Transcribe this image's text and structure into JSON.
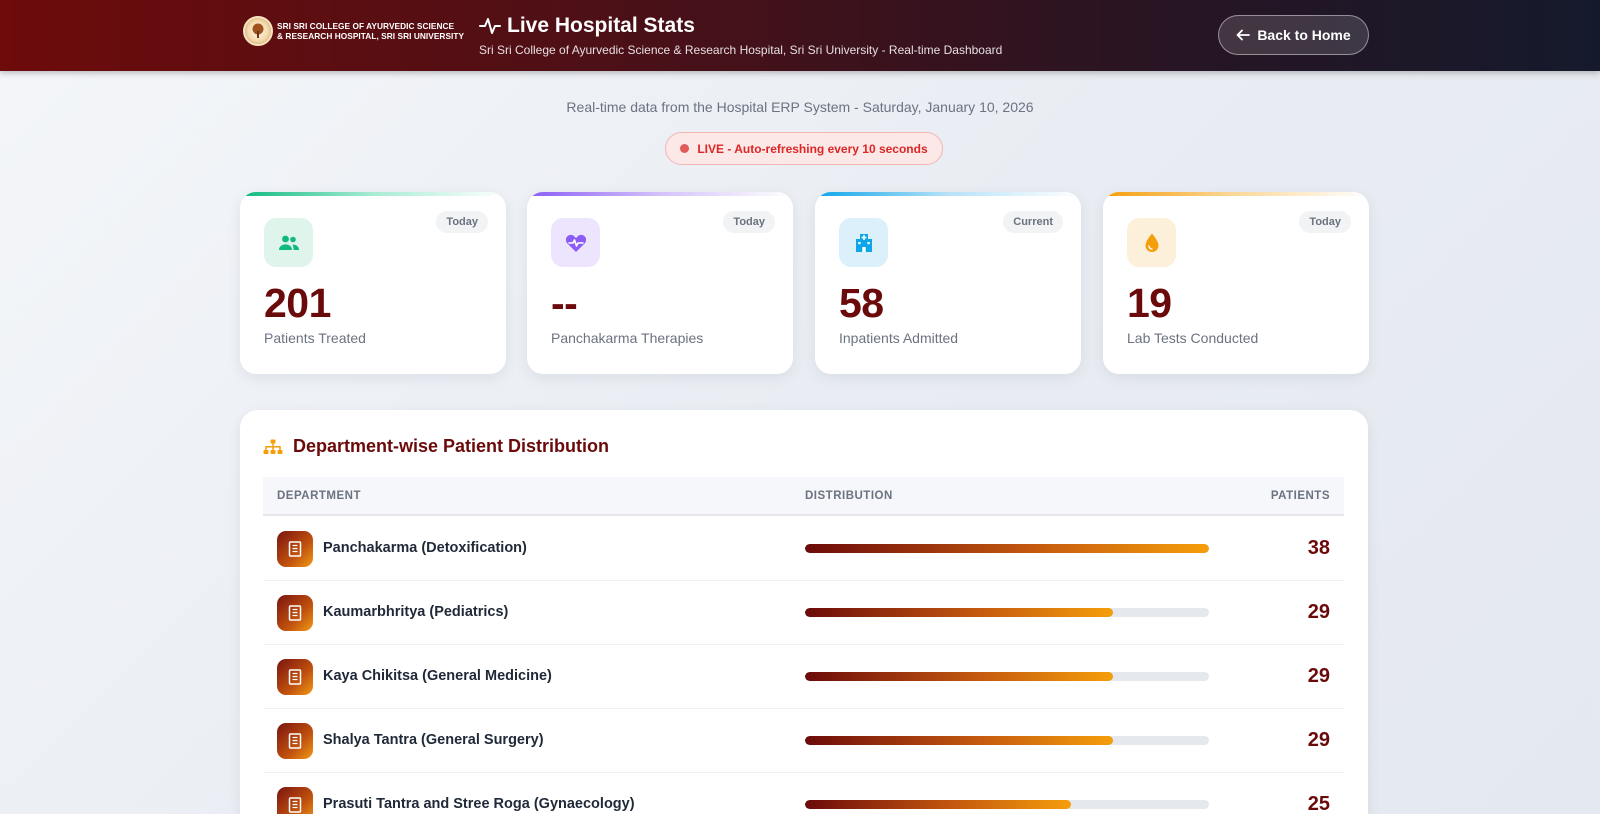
{
  "header": {
    "logo_line1": "SRI SRI COLLEGE OF AYURVEDIC SCIENCE",
    "logo_line2": "& RESEARCH HOSPITAL, SRI SRI UNIVERSITY",
    "title": "Live Hospital Stats",
    "subtitle": "Sri Sri College of Ayurvedic Science & Research Hospital, Sri Sri University - Real-time Dashboard",
    "back_label": "Back to Home"
  },
  "intro": {
    "realtime_text": "Real-time data from the Hospital ERP System - Saturday, January 10, 2026",
    "live_text": "LIVE - Auto-refreshing every 10 seconds"
  },
  "stats": [
    {
      "badge": "Today",
      "value": "201",
      "label": "Patients Treated",
      "icon": "users-icon",
      "accent": "#10b981",
      "icon_bg": "#dff5ec"
    },
    {
      "badge": "Today",
      "value": "--",
      "label": "Panchakarma Therapies",
      "icon": "heart-pulse-icon",
      "accent": "#8b5cf6",
      "icon_bg": "#ede5fd"
    },
    {
      "badge": "Current",
      "value": "58",
      "label": "Inpatients Admitted",
      "icon": "hospital-icon",
      "accent": "#0ea5e9",
      "icon_bg": "#dcf0fb"
    },
    {
      "badge": "Today",
      "value": "19",
      "label": "Lab Tests Conducted",
      "icon": "droplet-icon",
      "accent": "#f59e0b",
      "icon_bg": "#fdf0da"
    }
  ],
  "departments": {
    "title": "Department-wise Patient Distribution",
    "columns": {
      "department": "DEPARTMENT",
      "distribution": "DISTRIBUTION",
      "patients": "PATIENTS"
    },
    "rows": [
      {
        "name": "Panchakarma (Detoxification)",
        "patients": "38",
        "share": 1.0
      },
      {
        "name": "Kaumarbhritya (Pediatrics)",
        "patients": "29",
        "share": 0.763
      },
      {
        "name": "Kaya Chikitsa (General Medicine)",
        "patients": "29",
        "share": 0.763
      },
      {
        "name": "Shalya Tantra (General Surgery)",
        "patients": "29",
        "share": 0.763
      },
      {
        "name": "Prasuti Tantra and Stree Roga (Gynaecology)",
        "patients": "25",
        "share": 0.658
      }
    ]
  },
  "colors": {
    "brand_maroon": "#6b0a0a",
    "live_red": "#dc2626"
  }
}
